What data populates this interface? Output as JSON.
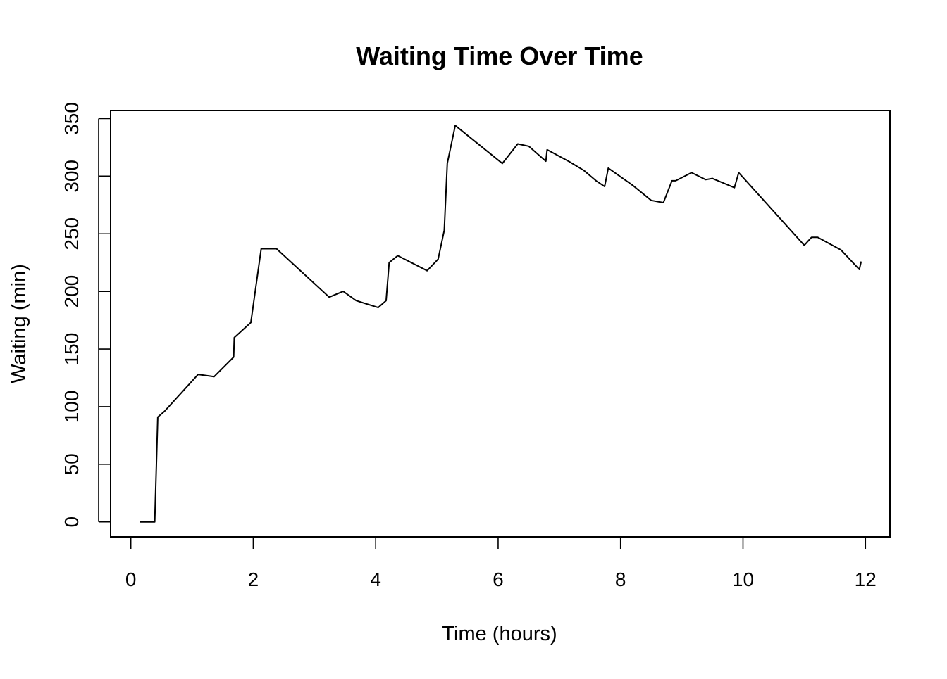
{
  "chart_data": {
    "type": "line",
    "title": "Waiting Time Over Time",
    "xlabel": "Time (hours)",
    "ylabel": "Waiting (min)",
    "xlim": [
      -0.33,
      12.4
    ],
    "ylim": [
      -13,
      357
    ],
    "xticks": [
      0,
      2,
      4,
      6,
      8,
      10,
      12
    ],
    "yticks": [
      0,
      50,
      100,
      150,
      200,
      250,
      300,
      350
    ],
    "grid": false,
    "line_color": "#000000",
    "series": [
      {
        "x": [
          0.15,
          0.39,
          0.44,
          0.55,
          1.1,
          1.36,
          1.68,
          1.69,
          1.96,
          2.13,
          2.38,
          3.24,
          3.47,
          3.68,
          4.04,
          4.17,
          4.22,
          4.36,
          4.84,
          5.02,
          5.12,
          5.17,
          5.3,
          6.07,
          6.32,
          6.5,
          6.78,
          6.8,
          7.15,
          7.4,
          7.6,
          7.74,
          7.8,
          8.2,
          8.5,
          8.7,
          8.84,
          8.9,
          9.16,
          9.39,
          9.5,
          9.86,
          9.93,
          11.0,
          11.12,
          11.22,
          11.6,
          11.9,
          11.93
        ],
        "y": [
          0,
          0,
          91,
          96,
          128,
          126,
          143,
          160,
          173,
          237,
          237,
          195,
          200,
          192,
          186,
          192,
          225,
          231,
          218,
          228,
          253,
          311,
          344,
          311,
          328,
          326,
          313,
          323,
          313,
          305,
          296,
          291,
          307,
          292,
          279,
          277,
          296,
          296,
          303,
          297,
          298,
          290,
          303,
          240,
          247,
          247,
          236,
          219,
          226
        ]
      }
    ]
  }
}
